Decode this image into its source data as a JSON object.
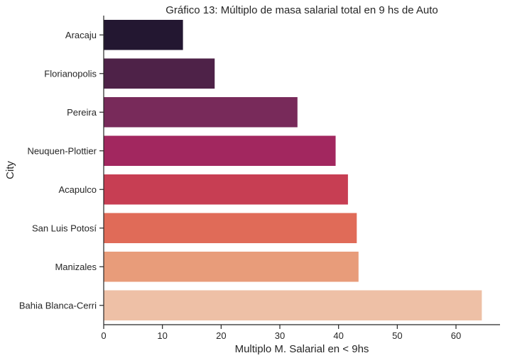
{
  "chart_data": {
    "type": "bar",
    "orientation": "horizontal",
    "title": "Gráfico 13: Múltiplo de masa salarial total en 9 hs de Auto",
    "xlabel": "Multiplo M. Salarial en < 9hs",
    "ylabel": "City",
    "categories": [
      "Aracaju",
      "Florianopolis",
      "Pereira",
      "Neuquen-Plottier",
      "Acapulco",
      "San Luis Potosí",
      "Manizales",
      "Bahia Blanca-Cerri"
    ],
    "values": [
      13.5,
      18.9,
      33.0,
      39.5,
      41.6,
      43.1,
      43.4,
      64.4
    ],
    "colors": [
      "#231731",
      "#4e2248",
      "#782a5a",
      "#a2275f",
      "#c73e53",
      "#e06b58",
      "#e89c7a",
      "#eec0a6"
    ],
    "xlim": [
      0,
      67.5
    ],
    "xticks": [
      0,
      10,
      20,
      30,
      40,
      50,
      60
    ],
    "grid": false,
    "legend": "none"
  }
}
